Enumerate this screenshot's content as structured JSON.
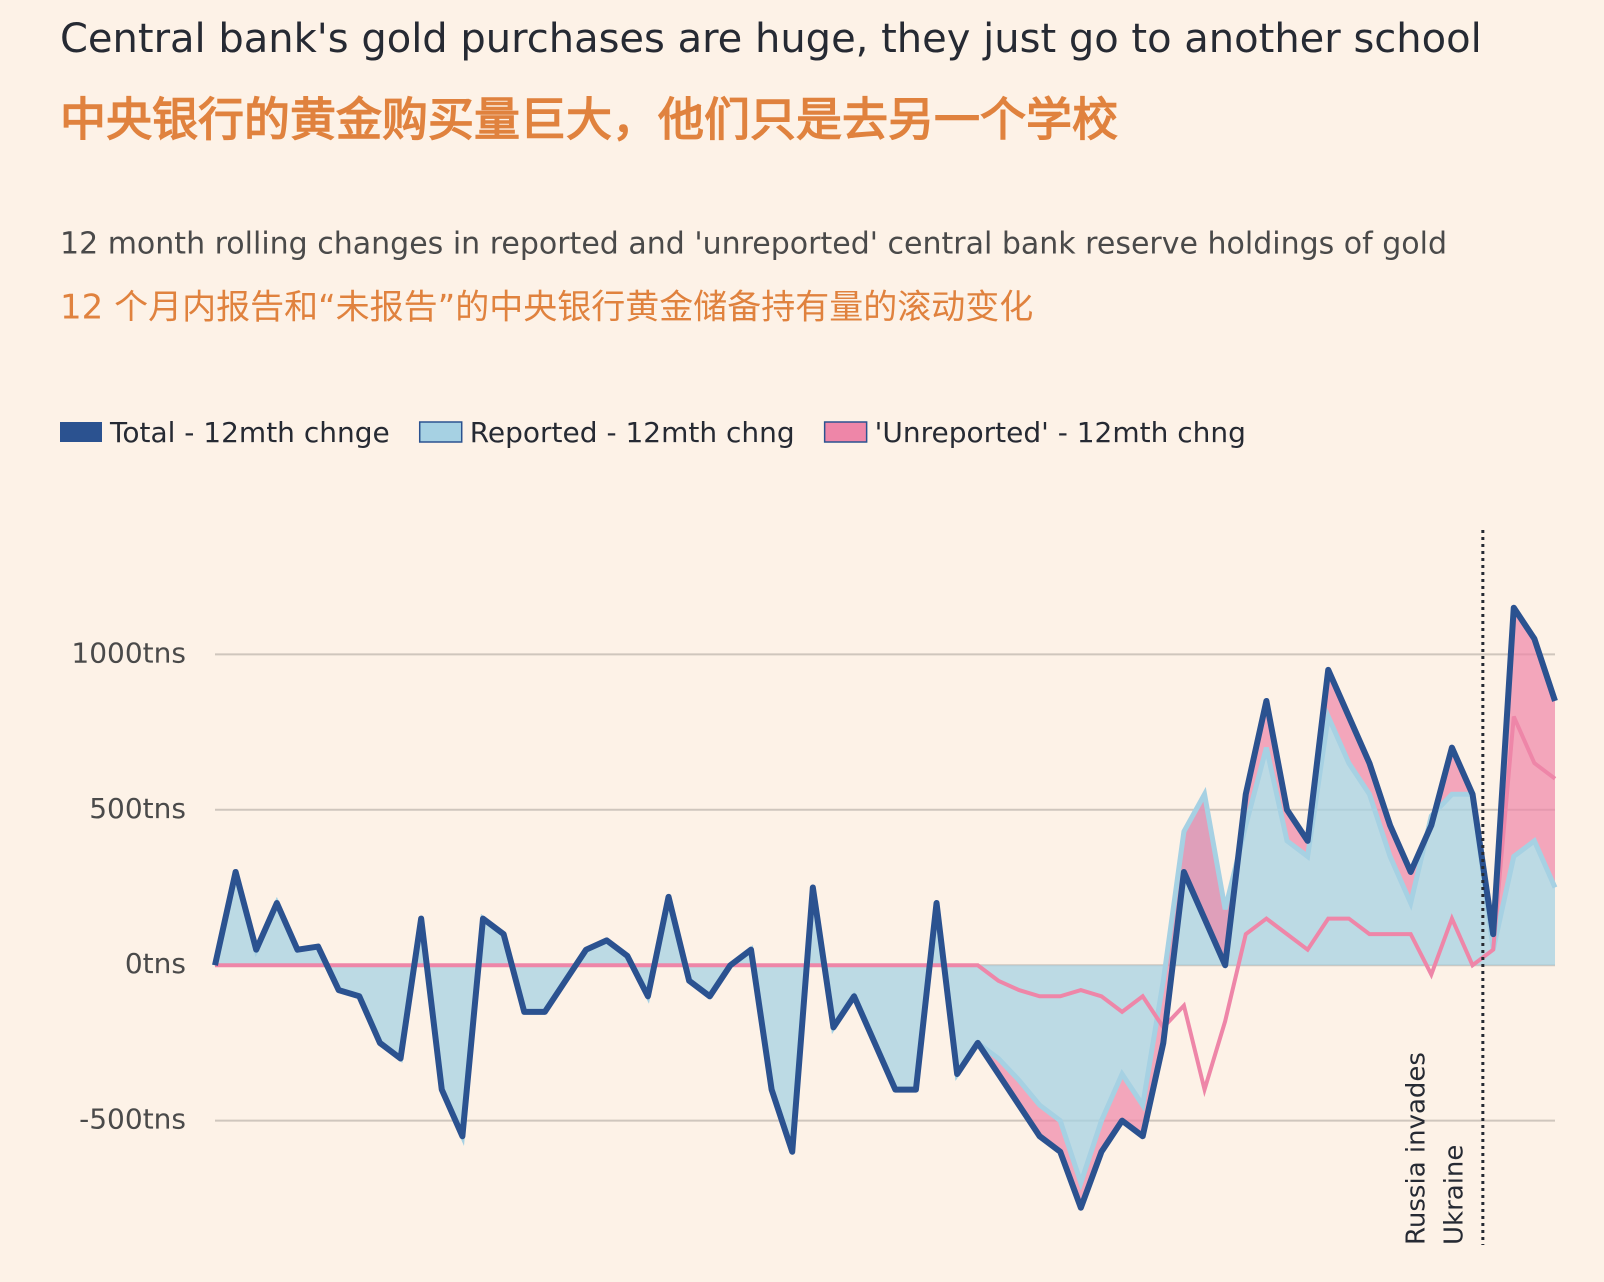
{
  "chart_data": {
    "type": "area",
    "title": "Central bank's gold purchases are huge, they just go to another school",
    "title_zh": "中央银行的黄金购买量巨大，他们只是去另一个学校",
    "subtitle": "12 month rolling changes in reported and 'unreported' central bank reserve holdings of gold",
    "subtitle_zh": "12 个月内报告和“未报告”的中央银行黄金储备持有量的滚动变化",
    "ylim": [
      -900,
      1400
    ],
    "yticks": [
      {
        "value": -500,
        "label": "-500tns"
      },
      {
        "value": 0,
        "label": "0tns"
      },
      {
        "value": 500,
        "label": "500tns"
      },
      {
        "value": 1000,
        "label": "1000tns"
      }
    ],
    "grid": true,
    "legend": "top-left",
    "series": [
      {
        "name": "Total - 12mth chnge",
        "color": "#2b5290",
        "values": [
          0,
          300,
          50,
          200,
          50,
          60,
          -80,
          -100,
          -250,
          -300,
          150,
          -400,
          -550,
          150,
          100,
          -150,
          -150,
          -50,
          50,
          80,
          30,
          -100,
          220,
          -50,
          -100,
          0,
          50,
          -400,
          -600,
          250,
          -200,
          -100,
          -250,
          -400,
          -400,
          200,
          -350,
          -250,
          -350,
          -450,
          -550,
          -600,
          -780,
          -600,
          -500,
          -550,
          -250,
          300,
          150,
          0,
          550,
          850,
          500,
          400,
          950,
          800,
          650,
          450,
          300,
          450,
          700,
          550,
          100,
          1150,
          1050,
          850
        ]
      },
      {
        "name": "Reported - 12mth chng",
        "color": "#a6d1e3",
        "values": [
          0,
          300,
          50,
          200,
          50,
          60,
          -80,
          -100,
          -250,
          -300,
          150,
          -400,
          -550,
          150,
          100,
          -150,
          -150,
          -50,
          50,
          80,
          30,
          -100,
          220,
          -50,
          -100,
          0,
          50,
          -400,
          -600,
          250,
          -200,
          -100,
          -250,
          -400,
          -400,
          200,
          -350,
          -250,
          -300,
          -370,
          -450,
          -500,
          -700,
          -500,
          -350,
          -450,
          -50,
          430,
          550,
          180,
          450,
          700,
          400,
          350,
          800,
          650,
          550,
          350,
          200,
          480,
          550,
          550,
          50,
          350,
          400,
          250
        ]
      },
      {
        "name": "'Unreported' - 12mth chng",
        "color": "#ee86a8",
        "values": [
          0,
          0,
          0,
          0,
          0,
          0,
          0,
          0,
          0,
          0,
          0,
          0,
          0,
          0,
          0,
          0,
          0,
          0,
          0,
          0,
          0,
          0,
          0,
          0,
          0,
          0,
          0,
          0,
          0,
          0,
          0,
          0,
          0,
          0,
          0,
          0,
          0,
          0,
          -50,
          -80,
          -100,
          -100,
          -80,
          -100,
          -150,
          -100,
          -200,
          -130,
          -400,
          -180,
          100,
          150,
          100,
          50,
          150,
          150,
          100,
          100,
          100,
          -30,
          150,
          0,
          50,
          800,
          650,
          600
        ]
      }
    ],
    "event": {
      "label": [
        "Russia invades",
        "Ukraine"
      ],
      "x": 61.5
    }
  }
}
